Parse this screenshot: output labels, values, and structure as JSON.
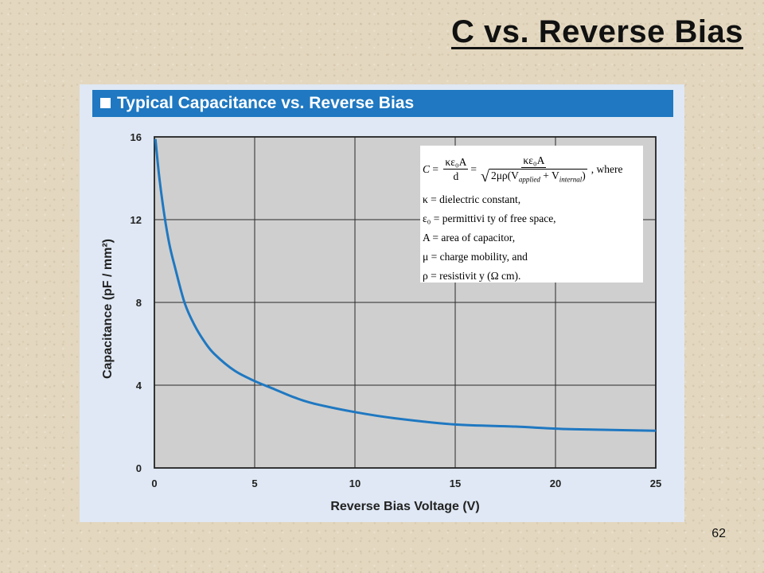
{
  "slide": {
    "title": "C vs. Reverse Bias",
    "page_number": "62"
  },
  "chart_header": "Typical Capacitance vs. Reverse Bias",
  "formula": {
    "lhs": "C",
    "frac1_num": "κε₀A",
    "frac1_den": "d",
    "frac2_num": "κε₀A",
    "frac2_den": "2μρ(V",
    "applied_sub": "applied",
    "plus_v": " + V",
    "internal_sub": "internal",
    "close": ")",
    "where": ", where",
    "definitions": [
      "κ = dielectric  constant,",
      "ε₀ = permittivi ty of free space,",
      "A = area of capacitor,",
      "μ = charge mobility,  and",
      "ρ = resistivit  y (Ω cm)."
    ]
  },
  "chart_data": {
    "type": "line",
    "title": "Typical Capacitance vs. Reverse Bias",
    "xlabel": "Reverse Bias Voltage (V)",
    "ylabel": "Capacitance (pF / mm²)",
    "xlim": [
      0,
      25
    ],
    "ylim": [
      0,
      16
    ],
    "xticks": [
      0,
      5,
      10,
      15,
      20,
      25
    ],
    "yticks": [
      0,
      4,
      8,
      12,
      16
    ],
    "grid": true,
    "colors": {
      "line": "#1f78c1",
      "plot_bg": "#cfcfcf",
      "grid": "#2a2a2a"
    },
    "series": [
      {
        "x": [
          0.05,
          0.25,
          0.5,
          0.75,
          1,
          1.5,
          2,
          2.5,
          3,
          4,
          5,
          6,
          7,
          8,
          10,
          12,
          15,
          18,
          20,
          22,
          25
        ],
        "y": [
          15.9,
          14.0,
          12.2,
          10.8,
          9.8,
          8.0,
          6.9,
          6.1,
          5.5,
          4.7,
          4.2,
          3.8,
          3.4,
          3.1,
          2.7,
          2.4,
          2.1,
          2.0,
          1.9,
          1.85,
          1.8
        ]
      }
    ]
  }
}
